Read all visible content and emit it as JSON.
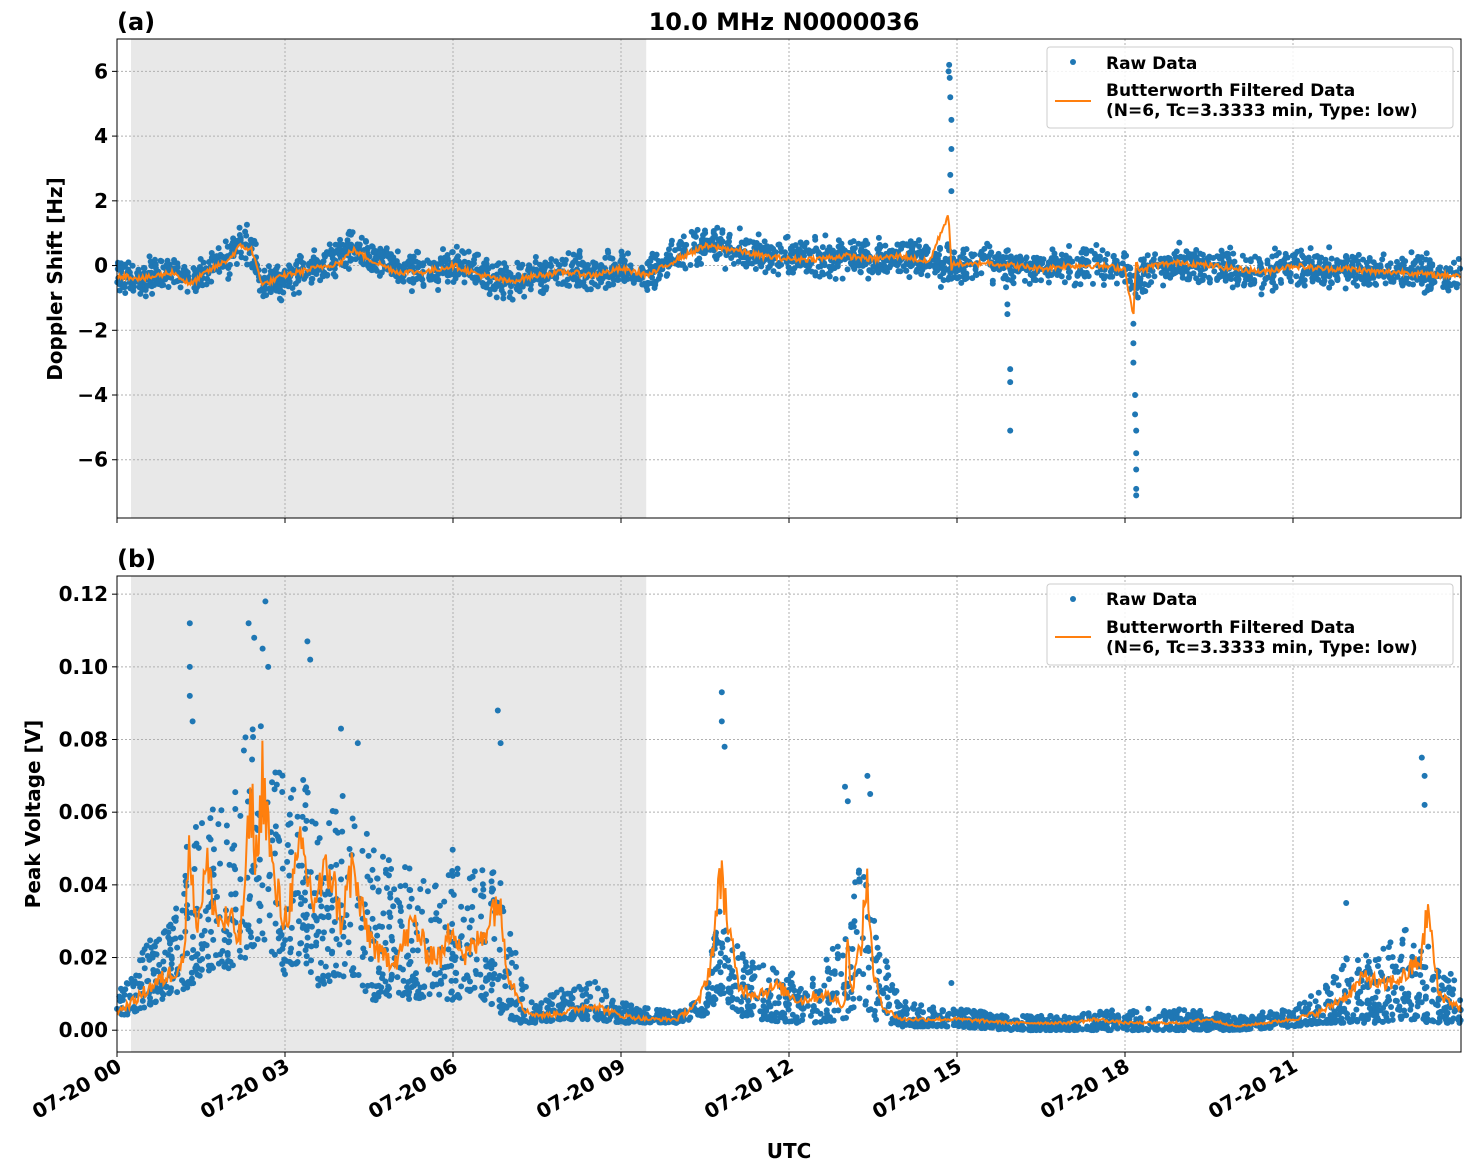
{
  "chart_data": [
    {
      "type": "scatter",
      "panel_label": "(a)",
      "title": "10.0 MHz N0000036",
      "ylabel": "Doppler Shift [Hz]",
      "xlabel": "",
      "ylim": [
        -7.8,
        7.0
      ],
      "yticks": [
        -6,
        -4,
        -2,
        0,
        2,
        4,
        6
      ],
      "ytick_labels": [
        "−6",
        "−4",
        "−2",
        "0",
        "2",
        "4",
        "6"
      ],
      "xlim_hours": [
        0,
        24
      ],
      "grid": true,
      "legend_position": "top-right",
      "shaded_region_hours": [
        0.25,
        9.45
      ],
      "colors": {
        "raw": "#1f77b4",
        "filtered": "#ff7f0e",
        "shade": "#e8e8e8"
      },
      "series": [
        {
          "name": "Raw Data",
          "kind": "points",
          "x_hours": [
            0,
            0.5,
            1,
            1.3,
            1.6,
            2,
            2.2,
            2.4,
            2.6,
            3,
            3.5,
            4,
            4.2,
            4.5,
            5,
            5.5,
            6,
            6.5,
            7,
            7.5,
            8,
            8.5,
            9,
            9.5,
            10,
            10.5,
            11,
            11.5,
            12,
            12.5,
            13,
            13.5,
            14,
            14.5,
            14.9,
            15.2,
            15.5,
            16,
            16.5,
            17,
            17.5,
            18,
            18.2,
            18.5,
            19,
            19.5,
            20,
            20.5,
            21,
            21.5,
            22,
            22.5,
            23,
            23.5,
            24
          ],
          "y_center": [
            -0.3,
            -0.4,
            -0.2,
            -0.5,
            -0.2,
            0.2,
            0.7,
            0.6,
            -0.6,
            -0.4,
            -0.1,
            0.2,
            0.6,
            0.3,
            -0.1,
            -0.2,
            0.0,
            -0.3,
            -0.5,
            -0.3,
            -0.2,
            -0.3,
            -0.1,
            -0.3,
            0.3,
            0.7,
            0.5,
            0.3,
            0.2,
            0.2,
            0.3,
            0.2,
            0.3,
            0.1,
            0.0,
            -0.1,
            0.1,
            0.0,
            -0.1,
            0.0,
            0.0,
            -0.1,
            -0.5,
            0.0,
            0.1,
            0.0,
            -0.1,
            -0.2,
            0.0,
            -0.1,
            -0.1,
            -0.2,
            -0.2,
            -0.3,
            -0.3
          ],
          "spread": 0.45,
          "outliers": [
            [
              14.86,
              6.2
            ],
            [
              14.87,
              5.8
            ],
            [
              14.88,
              5.2
            ],
            [
              14.9,
              4.5
            ],
            [
              14.9,
              3.6
            ],
            [
              14.88,
              2.8
            ],
            [
              14.9,
              2.3
            ],
            [
              14.85,
              6.0
            ],
            [
              15.9,
              -1.2
            ],
            [
              15.9,
              -1.5
            ],
            [
              15.95,
              -3.2
            ],
            [
              15.95,
              -3.6
            ],
            [
              15.95,
              -5.1
            ],
            [
              18.15,
              -2.4
            ],
            [
              18.15,
              -3.0
            ],
            [
              18.18,
              -4.0
            ],
            [
              18.18,
              -4.6
            ],
            [
              18.2,
              -5.1
            ],
            [
              18.2,
              -5.8
            ],
            [
              18.2,
              -6.3
            ],
            [
              18.2,
              -6.9
            ],
            [
              18.2,
              -7.1
            ],
            [
              18.15,
              -1.8
            ]
          ]
        },
        {
          "name": "Butterworth Filtered Data\n(N=6, Tc=3.3333 min, Type: low)",
          "kind": "line",
          "x_hours": [
            0,
            0.5,
            1,
            1.3,
            1.6,
            2,
            2.2,
            2.4,
            2.6,
            3,
            3.5,
            4,
            4.2,
            4.5,
            5,
            5.5,
            6,
            6.5,
            7,
            7.5,
            8,
            8.5,
            9,
            9.5,
            10,
            10.5,
            11,
            11.5,
            12,
            12.5,
            13,
            13.5,
            14,
            14.5,
            14.85,
            14.9,
            14.95,
            15.2,
            15.5,
            16,
            16.5,
            17,
            17.5,
            18,
            18.15,
            18.2,
            18.25,
            18.5,
            19,
            19.5,
            20,
            20.5,
            21,
            21.5,
            22,
            22.5,
            23,
            23.5,
            24
          ],
          "y": [
            -0.3,
            -0.4,
            -0.2,
            -0.6,
            -0.2,
            0.2,
            0.6,
            0.5,
            -0.6,
            -0.3,
            -0.1,
            0.1,
            0.5,
            0.2,
            -0.2,
            -0.2,
            0.0,
            -0.3,
            -0.5,
            -0.3,
            -0.2,
            -0.3,
            -0.1,
            -0.3,
            0.2,
            0.6,
            0.5,
            0.3,
            0.2,
            0.2,
            0.3,
            0.2,
            0.3,
            0.1,
            1.6,
            -0.2,
            0.1,
            0.0,
            0.1,
            0.0,
            -0.1,
            0.0,
            0.0,
            -0.1,
            -1.6,
            0.3,
            -0.2,
            0.0,
            0.1,
            0.0,
            -0.1,
            -0.2,
            0.0,
            -0.1,
            -0.1,
            -0.2,
            -0.2,
            -0.3,
            -0.3
          ]
        }
      ]
    },
    {
      "type": "scatter",
      "panel_label": "(b)",
      "title": "",
      "ylabel": "Peak Voltage [V]",
      "xlabel": "UTC",
      "ylim": [
        -0.006,
        0.125
      ],
      "yticks": [
        0.0,
        0.02,
        0.04,
        0.06,
        0.08,
        0.1,
        0.12
      ],
      "ytick_labels": [
        "0.00",
        "0.02",
        "0.04",
        "0.06",
        "0.08",
        "0.10",
        "0.12"
      ],
      "xlim_hours": [
        0,
        24
      ],
      "xticks_hours": [
        0,
        3,
        6,
        9,
        12,
        15,
        18,
        21
      ],
      "xtick_labels": [
        "07-20 00",
        "07-20 03",
        "07-20 06",
        "07-20 09",
        "07-20 12",
        "07-20 15",
        "07-20 18",
        "07-20 21"
      ],
      "grid": true,
      "legend_position": "top-right",
      "shaded_region_hours": [
        0.25,
        9.45
      ],
      "colors": {
        "raw": "#1f77b4",
        "filtered": "#ff7f0e",
        "shade": "#e8e8e8"
      },
      "series": [
        {
          "name": "Raw Data",
          "kind": "band",
          "x_hours": [
            0,
            0.3,
            0.6,
            1.0,
            1.3,
            1.5,
            1.8,
            2.0,
            2.3,
            2.6,
            2.8,
            3.0,
            3.3,
            3.6,
            4.0,
            4.3,
            4.6,
            5.0,
            5.3,
            5.6,
            6.0,
            6.3,
            6.6,
            6.9,
            7.2,
            7.5,
            8.0,
            8.5,
            9.0,
            9.5,
            10.0,
            10.5,
            10.8,
            11.1,
            11.5,
            12.0,
            12.5,
            13.0,
            13.3,
            13.6,
            14.0,
            15.0,
            16.0,
            17.0,
            18.0,
            19.0,
            20.0,
            21.0,
            21.5,
            22.0,
            22.5,
            23.0,
            23.5,
            24.0
          ],
          "low": [
            0.003,
            0.005,
            0.007,
            0.01,
            0.012,
            0.015,
            0.018,
            0.017,
            0.02,
            0.025,
            0.02,
            0.015,
            0.02,
            0.012,
            0.015,
            0.012,
            0.008,
            0.01,
            0.008,
            0.01,
            0.008,
            0.01,
            0.008,
            0.004,
            0.002,
            0.002,
            0.003,
            0.003,
            0.002,
            0.002,
            0.002,
            0.004,
            0.01,
            0.004,
            0.003,
            0.002,
            0.002,
            0.003,
            0.008,
            0.002,
            0.001,
            0.001,
            0.0,
            0.0,
            0.0,
            0.0,
            0.0,
            0.001,
            0.002,
            0.002,
            0.002,
            0.003,
            0.002,
            0.002
          ],
          "high": [
            0.012,
            0.018,
            0.025,
            0.03,
            0.055,
            0.06,
            0.065,
            0.055,
            0.085,
            0.09,
            0.075,
            0.07,
            0.072,
            0.055,
            0.065,
            0.06,
            0.052,
            0.045,
            0.045,
            0.04,
            0.05,
            0.045,
            0.048,
            0.04,
            0.015,
            0.008,
            0.012,
            0.014,
            0.008,
            0.006,
            0.005,
            0.01,
            0.04,
            0.022,
            0.018,
            0.016,
            0.015,
            0.03,
            0.05,
            0.025,
            0.008,
            0.006,
            0.004,
            0.004,
            0.006,
            0.006,
            0.004,
            0.006,
            0.012,
            0.022,
            0.022,
            0.028,
            0.022,
            0.014
          ],
          "outliers": [
            [
              1.3,
              0.112
            ],
            [
              1.3,
              0.1
            ],
            [
              1.3,
              0.092
            ],
            [
              1.35,
              0.085
            ],
            [
              2.35,
              0.112
            ],
            [
              2.45,
              0.108
            ],
            [
              2.6,
              0.105
            ],
            [
              2.65,
              0.118
            ],
            [
              2.7,
              0.1
            ],
            [
              3.4,
              0.107
            ],
            [
              3.45,
              0.102
            ],
            [
              4.0,
              0.083
            ],
            [
              4.3,
              0.079
            ],
            [
              6.8,
              0.088
            ],
            [
              6.85,
              0.079
            ],
            [
              10.8,
              0.093
            ],
            [
              10.8,
              0.085
            ],
            [
              10.85,
              0.078
            ],
            [
              13.0,
              0.067
            ],
            [
              13.05,
              0.063
            ],
            [
              13.4,
              0.07
            ],
            [
              13.45,
              0.065
            ],
            [
              23.3,
              0.075
            ],
            [
              23.35,
              0.07
            ],
            [
              23.35,
              0.062
            ],
            [
              21.95,
              0.035
            ],
            [
              14.9,
              0.013
            ]
          ]
        },
        {
          "name": "Butterworth Filtered Data\n(N=6, Tc=3.3333 min, Type: low)",
          "kind": "line",
          "x_hours": [
            0,
            0.3,
            0.6,
            1.0,
            1.2,
            1.3,
            1.4,
            1.6,
            1.8,
            2.0,
            2.2,
            2.4,
            2.5,
            2.6,
            2.8,
            3.0,
            3.3,
            3.5,
            3.8,
            4.0,
            4.2,
            4.4,
            4.7,
            5.0,
            5.3,
            5.5,
            5.8,
            6.0,
            6.2,
            6.5,
            6.8,
            7.0,
            7.3,
            7.6,
            8.0,
            8.5,
            9.0,
            9.5,
            10.0,
            10.4,
            10.6,
            10.8,
            10.9,
            11.1,
            11.4,
            11.8,
            12.2,
            12.6,
            13.0,
            13.05,
            13.1,
            13.3,
            13.4,
            13.5,
            13.7,
            14.0,
            14.5,
            15.0,
            16.0,
            17.0,
            17.5,
            18.0,
            19.0,
            19.5,
            20.0,
            20.5,
            21.0,
            21.5,
            22.0,
            22.3,
            22.6,
            23.0,
            23.3,
            23.4,
            23.6,
            24.0
          ],
          "y": [
            0.005,
            0.008,
            0.012,
            0.016,
            0.02,
            0.057,
            0.028,
            0.045,
            0.03,
            0.03,
            0.025,
            0.063,
            0.045,
            0.071,
            0.04,
            0.03,
            0.05,
            0.035,
            0.045,
            0.03,
            0.045,
            0.03,
            0.02,
            0.02,
            0.03,
            0.022,
            0.02,
            0.03,
            0.02,
            0.025,
            0.037,
            0.015,
            0.005,
            0.004,
            0.005,
            0.007,
            0.004,
            0.003,
            0.003,
            0.008,
            0.018,
            0.045,
            0.03,
            0.012,
            0.01,
            0.012,
            0.008,
            0.01,
            0.007,
            0.03,
            0.01,
            0.025,
            0.043,
            0.015,
            0.006,
            0.003,
            0.003,
            0.003,
            0.002,
            0.002,
            0.003,
            0.002,
            0.002,
            0.003,
            0.001,
            0.002,
            0.003,
            0.005,
            0.01,
            0.015,
            0.012,
            0.015,
            0.02,
            0.034,
            0.01,
            0.006
          ]
        }
      ]
    }
  ]
}
